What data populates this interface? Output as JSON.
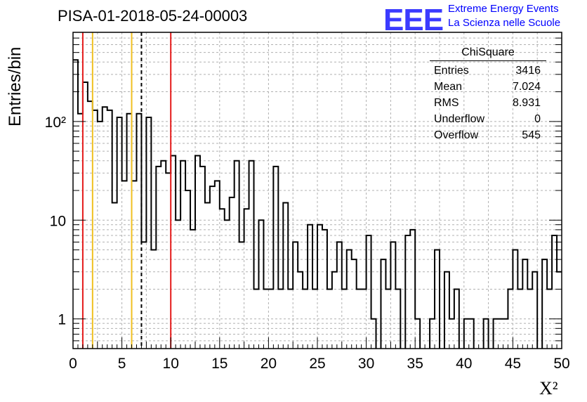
{
  "chart_data": {
    "type": "bar",
    "title": "PISA-01-2018-05-24-00003",
    "xlabel": "X²",
    "ylabel": "Entries/bin",
    "xlim": [
      0,
      50
    ],
    "ylim": [
      0.5,
      800
    ],
    "log_y": true,
    "grid": true,
    "bin_width": 0.5,
    "values": [
      420,
      120,
      250,
      160,
      130,
      100,
      140,
      130,
      15,
      110,
      25,
      120,
      25,
      120,
      6,
      110,
      5,
      35,
      40,
      30,
      45,
      10,
      40,
      20,
      8,
      45,
      35,
      15,
      22,
      25,
      13,
      10,
      17,
      40,
      6,
      13,
      40,
      2,
      10,
      2,
      2,
      35,
      2,
      15,
      2,
      6,
      3,
      2,
      9,
      2,
      9,
      8,
      2,
      3,
      6,
      2,
      5,
      4,
      2,
      2,
      7,
      1,
      0,
      4,
      2,
      6,
      2,
      0,
      7,
      8,
      1,
      0,
      0,
      1,
      5,
      0,
      3,
      1,
      2,
      0,
      1,
      1,
      0,
      0,
      1,
      0,
      1,
      1,
      1,
      2,
      5,
      2,
      4,
      2,
      3,
      0,
      4,
      2,
      7,
      3
    ],
    "ticks_x": [
      "0",
      "5",
      "10",
      "15",
      "20",
      "25",
      "30",
      "35",
      "40",
      "45",
      "50"
    ],
    "ticks_y": [
      "1",
      "10",
      "10²"
    ],
    "vertical_lines": [
      {
        "x": 1,
        "color": "#e41a1a",
        "style": "solid"
      },
      {
        "x": 2,
        "color": "#f0c020",
        "style": "solid"
      },
      {
        "x": 6,
        "color": "#f0c020",
        "style": "solid"
      },
      {
        "x": 7,
        "color": "#000000",
        "style": "dashed"
      },
      {
        "x": 10,
        "color": "#e41a1a",
        "style": "solid"
      }
    ]
  },
  "logo": {
    "text": "EEE",
    "line1": "Extreme Energy Events",
    "line2": "La Scienza nelle Scuole",
    "color": "#0000ff"
  },
  "stats": {
    "name": "ChiSquare",
    "rows": [
      {
        "label": "Entries",
        "value": "3416"
      },
      {
        "label": "Mean",
        "value": "7.024"
      },
      {
        "label": "RMS",
        "value": "8.931"
      },
      {
        "label": "Underflow",
        "value": "0"
      },
      {
        "label": "Overflow",
        "value": "545"
      }
    ]
  }
}
